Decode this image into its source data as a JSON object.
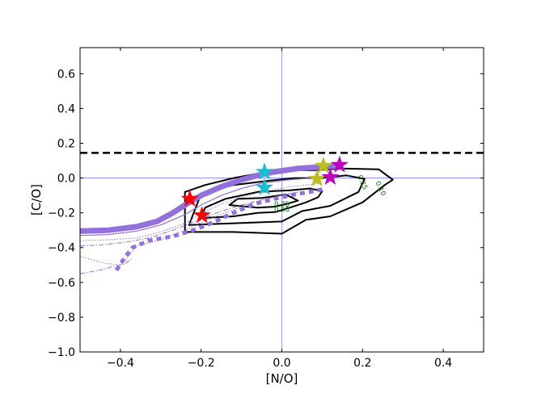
{
  "chart_data": {
    "type": "line",
    "title": "",
    "xlabel": "[N/O]",
    "ylabel": "[C/O]",
    "xlim": [
      -0.5,
      0.5
    ],
    "ylim": [
      -1.0,
      0.75
    ],
    "xticks": [
      {
        "v": -0.4,
        "label": "−0.4"
      },
      {
        "v": -0.2,
        "label": "−0.2"
      },
      {
        "v": 0.0,
        "label": "0.0"
      },
      {
        "v": 0.2,
        "label": "0.2"
      },
      {
        "v": 0.4,
        "label": "0.4"
      }
    ],
    "yticks": [
      {
        "v": 0.6,
        "label": "0.6"
      },
      {
        "v": 0.4,
        "label": "0.4"
      },
      {
        "v": 0.2,
        "label": "0.2"
      },
      {
        "v": 0.0,
        "label": "0.0"
      },
      {
        "v": -0.2,
        "label": "−0.2"
      },
      {
        "v": -0.4,
        "label": "−0.4"
      },
      {
        "v": -0.6,
        "label": "−0.6"
      },
      {
        "v": -0.8,
        "label": "−0.8"
      },
      {
        "v": -1.0,
        "label": "−1.0"
      }
    ],
    "reference_lines": {
      "vertical_x": 0.0,
      "horizontal_y": 0.0,
      "color": "#8080ff",
      "dashed_horizontal_y": 0.145,
      "dashed_color": "#000000"
    },
    "contours": [
      {
        "level": "0.10",
        "label_at": [
          0.24,
          -0.065
        ],
        "points": [
          [
            -0.24,
            -0.31
          ],
          [
            -0.12,
            -0.31
          ],
          [
            0.0,
            -0.32
          ],
          [
            0.06,
            -0.24
          ],
          [
            0.12,
            -0.22
          ],
          [
            0.2,
            -0.14
          ],
          [
            0.255,
            -0.04
          ],
          [
            0.275,
            -0.01
          ],
          [
            0.24,
            0.05
          ],
          [
            0.15,
            0.055
          ],
          [
            0.08,
            0.045
          ],
          [
            0.02,
            0.045
          ],
          [
            -0.05,
            0.03
          ],
          [
            -0.12,
            0.0
          ],
          [
            -0.19,
            -0.04
          ],
          [
            -0.24,
            -0.08
          ]
        ]
      },
      {
        "level": "0.25",
        "label_at": [
          0.195,
          -0.03
        ],
        "points": [
          [
            -0.23,
            -0.27
          ],
          [
            -0.12,
            -0.26
          ],
          [
            0.0,
            -0.25
          ],
          [
            0.05,
            -0.19
          ],
          [
            0.12,
            -0.16
          ],
          [
            0.19,
            -0.08
          ],
          [
            0.205,
            -0.005
          ],
          [
            0.16,
            0.015
          ],
          [
            0.1,
            0.0
          ],
          [
            0.03,
            0.0
          ],
          [
            -0.03,
            -0.015
          ],
          [
            -0.12,
            -0.04
          ],
          [
            -0.2,
            -0.09
          ]
        ]
      },
      {
        "level": "0.50",
        "label_at": [
          0.0,
          -0.195
        ],
        "points": [
          [
            -0.2,
            -0.23
          ],
          [
            -0.12,
            -0.22
          ],
          [
            -0.06,
            -0.2
          ],
          [
            -0.015,
            -0.195
          ],
          [
            0.02,
            -0.17
          ],
          [
            0.06,
            -0.14
          ],
          [
            0.09,
            -0.11
          ],
          [
            0.1,
            -0.075
          ],
          [
            0.07,
            -0.06
          ],
          [
            0.02,
            -0.07
          ],
          [
            -0.06,
            -0.08
          ],
          [
            -0.14,
            -0.12
          ],
          [
            -0.19,
            -0.17
          ]
        ]
      },
      {
        "level": "0.75",
        "label_at": [
          0.0,
          -0.165
        ],
        "points": [
          [
            -0.13,
            -0.155
          ],
          [
            -0.06,
            -0.17
          ],
          [
            -0.02,
            -0.165
          ],
          [
            0.01,
            -0.15
          ],
          [
            0.04,
            -0.13
          ],
          [
            0.01,
            -0.095
          ],
          [
            -0.05,
            -0.115
          ],
          [
            -0.11,
            -0.12
          ]
        ]
      }
    ],
    "tracks": [
      {
        "style": "thick",
        "color": "#9370db",
        "points": [
          [
            -0.5,
            -0.305
          ],
          [
            -0.43,
            -0.3
          ],
          [
            -0.36,
            -0.28
          ],
          [
            -0.31,
            -0.25
          ],
          [
            -0.27,
            -0.2
          ],
          [
            -0.24,
            -0.155
          ],
          [
            -0.2,
            -0.1
          ],
          [
            -0.15,
            -0.05
          ],
          [
            -0.1,
            -0.01
          ],
          [
            -0.06,
            0.015
          ],
          [
            -0.02,
            0.035
          ],
          [
            0.04,
            0.055
          ],
          [
            0.1,
            0.065
          ],
          [
            0.14,
            0.07
          ]
        ]
      },
      {
        "style": "thin",
        "color": "#9370db",
        "points": [
          [
            -0.5,
            -0.33
          ],
          [
            -0.43,
            -0.325
          ],
          [
            -0.36,
            -0.305
          ],
          [
            -0.3,
            -0.27
          ],
          [
            -0.24,
            -0.21
          ],
          [
            -0.2,
            -0.155
          ],
          [
            -0.15,
            -0.1
          ],
          [
            -0.1,
            -0.06
          ],
          [
            -0.05,
            -0.03
          ],
          [
            0.02,
            -0.01
          ],
          [
            0.1,
            0.005
          ]
        ]
      },
      {
        "style": "dotted",
        "color": "#9370db",
        "points": [
          [
            -0.5,
            -0.36
          ],
          [
            -0.43,
            -0.355
          ],
          [
            -0.36,
            -0.345
          ],
          [
            -0.3,
            -0.31
          ],
          [
            -0.24,
            -0.26
          ],
          [
            -0.2,
            -0.205
          ],
          [
            -0.15,
            -0.15
          ],
          [
            -0.1,
            -0.11
          ],
          [
            -0.05,
            -0.08
          ],
          [
            0.02,
            -0.05
          ],
          [
            0.1,
            -0.03
          ]
        ]
      },
      {
        "style": "dashdot",
        "color": "#9370db",
        "points": [
          [
            -0.5,
            -0.39
          ],
          [
            -0.45,
            -0.385
          ],
          [
            -0.39,
            -0.37
          ],
          [
            -0.33,
            -0.345
          ],
          [
            -0.27,
            -0.3
          ],
          [
            -0.21,
            -0.245
          ],
          [
            -0.15,
            -0.19
          ],
          [
            -0.1,
            -0.155
          ],
          [
            -0.04,
            -0.12
          ],
          [
            0.04,
            -0.08
          ]
        ]
      },
      {
        "style": "dotted",
        "color": "#9370db",
        "points": [
          [
            -0.5,
            -0.45
          ],
          [
            -0.44,
            -0.49
          ],
          [
            -0.4,
            -0.5
          ],
          [
            -0.38,
            -0.45
          ],
          [
            -0.36,
            -0.39
          ],
          [
            -0.3,
            -0.355
          ],
          [
            -0.24,
            -0.3
          ],
          [
            -0.19,
            -0.245
          ],
          [
            -0.13,
            -0.19
          ],
          [
            -0.08,
            -0.15
          ]
        ]
      },
      {
        "style": "dashdot",
        "color": "#9370db",
        "points": [
          [
            -0.5,
            -0.55
          ],
          [
            -0.45,
            -0.53
          ],
          [
            -0.42,
            -0.51
          ],
          [
            -0.39,
            -0.495
          ],
          [
            -0.37,
            -0.46
          ]
        ]
      },
      {
        "style": "thickdotted",
        "color": "#9370db",
        "points": [
          [
            -0.41,
            -0.53
          ],
          [
            -0.39,
            -0.46
          ],
          [
            -0.37,
            -0.4
          ],
          [
            -0.33,
            -0.36
          ],
          [
            -0.27,
            -0.335
          ],
          [
            -0.22,
            -0.3
          ],
          [
            -0.17,
            -0.255
          ],
          [
            -0.12,
            -0.2
          ],
          [
            -0.07,
            -0.15
          ],
          [
            -0.02,
            -0.12
          ],
          [
            0.03,
            -0.095
          ],
          [
            0.08,
            -0.075
          ],
          [
            0.11,
            -0.06
          ]
        ]
      }
    ],
    "stars": [
      {
        "x": -0.228,
        "y": -0.12,
        "color": "#ff0000"
      },
      {
        "x": -0.198,
        "y": -0.215,
        "color": "#ff0000"
      },
      {
        "x": -0.043,
        "y": 0.035,
        "color": "#17becf"
      },
      {
        "x": -0.043,
        "y": -0.055,
        "color": "#17becf"
      },
      {
        "x": 0.103,
        "y": 0.07,
        "color": "#bcbd22"
      },
      {
        "x": 0.087,
        "y": -0.005,
        "color": "#bcbd22"
      },
      {
        "x": 0.143,
        "y": 0.075,
        "color": "#bf00bf"
      },
      {
        "x": 0.12,
        "y": 0.005,
        "color": "#bf00bf"
      }
    ]
  }
}
